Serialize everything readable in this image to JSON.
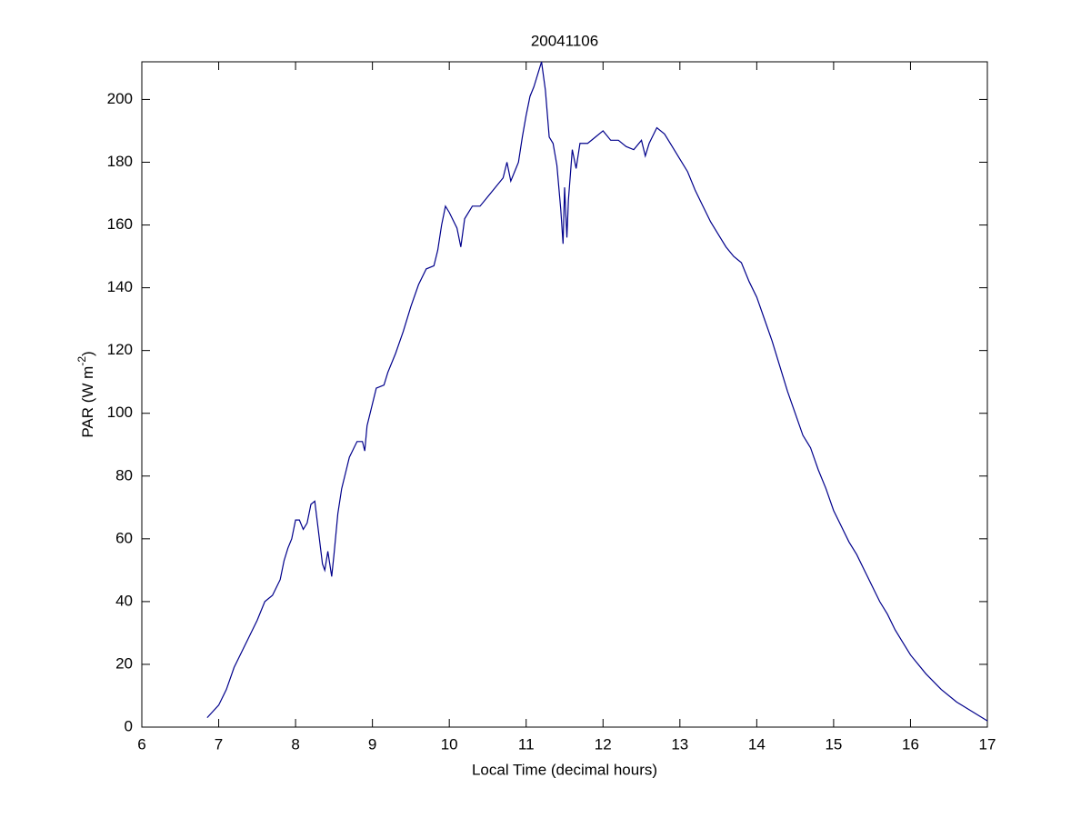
{
  "chart_data": {
    "type": "line",
    "title": "20041106",
    "x_label": "Local Time (decimal hours)",
    "y_label": [
      "PAR (W m",
      "-2",
      ")"
    ],
    "color": "#00008b",
    "xlim": [
      6,
      17
    ],
    "xticks": [
      6,
      7,
      8,
      9,
      10,
      11,
      12,
      13,
      14,
      15,
      16,
      17
    ],
    "ylim": [
      0,
      212
    ],
    "yticks": [
      0,
      20,
      40,
      60,
      80,
      100,
      120,
      140,
      160,
      180,
      200
    ],
    "x": [
      6.85,
      7.0,
      7.1,
      7.2,
      7.3,
      7.4,
      7.5,
      7.6,
      7.7,
      7.8,
      7.85,
      7.9,
      7.95,
      8.0,
      8.05,
      8.1,
      8.15,
      8.2,
      8.25,
      8.3,
      8.35,
      8.38,
      8.42,
      8.47,
      8.5,
      8.55,
      8.6,
      8.7,
      8.8,
      8.87,
      8.9,
      8.93,
      9.0,
      9.05,
      9.15,
      9.2,
      9.3,
      9.4,
      9.5,
      9.6,
      9.7,
      9.8,
      9.85,
      9.9,
      9.95,
      10.0,
      10.1,
      10.15,
      10.2,
      10.3,
      10.4,
      10.5,
      10.6,
      10.7,
      10.75,
      10.8,
      10.85,
      10.9,
      10.95,
      11.0,
      11.05,
      11.1,
      11.15,
      11.2,
      11.25,
      11.3,
      11.35,
      11.4,
      11.45,
      11.48,
      11.5,
      11.53,
      11.55,
      11.6,
      11.65,
      11.7,
      11.8,
      11.9,
      12.0,
      12.1,
      12.2,
      12.3,
      12.4,
      12.5,
      12.55,
      12.6,
      12.7,
      12.8,
      12.9,
      13.0,
      13.1,
      13.2,
      13.3,
      13.4,
      13.5,
      13.6,
      13.7,
      13.8,
      13.9,
      14.0,
      14.1,
      14.2,
      14.3,
      14.4,
      14.5,
      14.6,
      14.7,
      14.8,
      14.9,
      15.0,
      15.1,
      15.2,
      15.3,
      15.4,
      15.5,
      15.6,
      15.7,
      15.8,
      15.9,
      16.0,
      16.2,
      16.4,
      16.6,
      16.8,
      17.0
    ],
    "values": [
      3,
      7,
      12,
      19,
      24,
      29,
      34,
      40,
      42,
      47,
      53,
      57,
      60,
      66,
      66,
      63,
      65,
      71,
      72,
      62,
      52,
      50,
      56,
      48,
      55,
      68,
      76,
      86,
      91,
      91,
      88,
      96,
      103,
      108,
      109,
      113,
      119,
      126,
      134,
      141,
      146,
      147,
      152,
      160,
      166,
      164,
      159,
      153,
      162,
      166,
      166,
      169,
      172,
      175,
      180,
      174,
      177,
      180,
      188,
      195,
      201,
      204,
      208,
      212,
      203,
      188,
      186,
      179,
      165,
      154,
      172,
      156,
      168,
      184,
      178,
      186,
      186,
      188,
      190,
      187,
      187,
      185,
      184,
      187,
      182,
      186,
      191,
      189,
      185,
      181,
      177,
      171,
      166,
      161,
      157,
      153,
      150,
      148,
      142,
      137,
      130,
      123,
      115,
      107,
      100,
      93,
      89,
      82,
      76,
      69,
      64,
      59,
      55,
      50,
      45,
      40,
      36,
      31,
      27,
      23,
      17,
      12,
      8,
      5,
      2
    ]
  }
}
